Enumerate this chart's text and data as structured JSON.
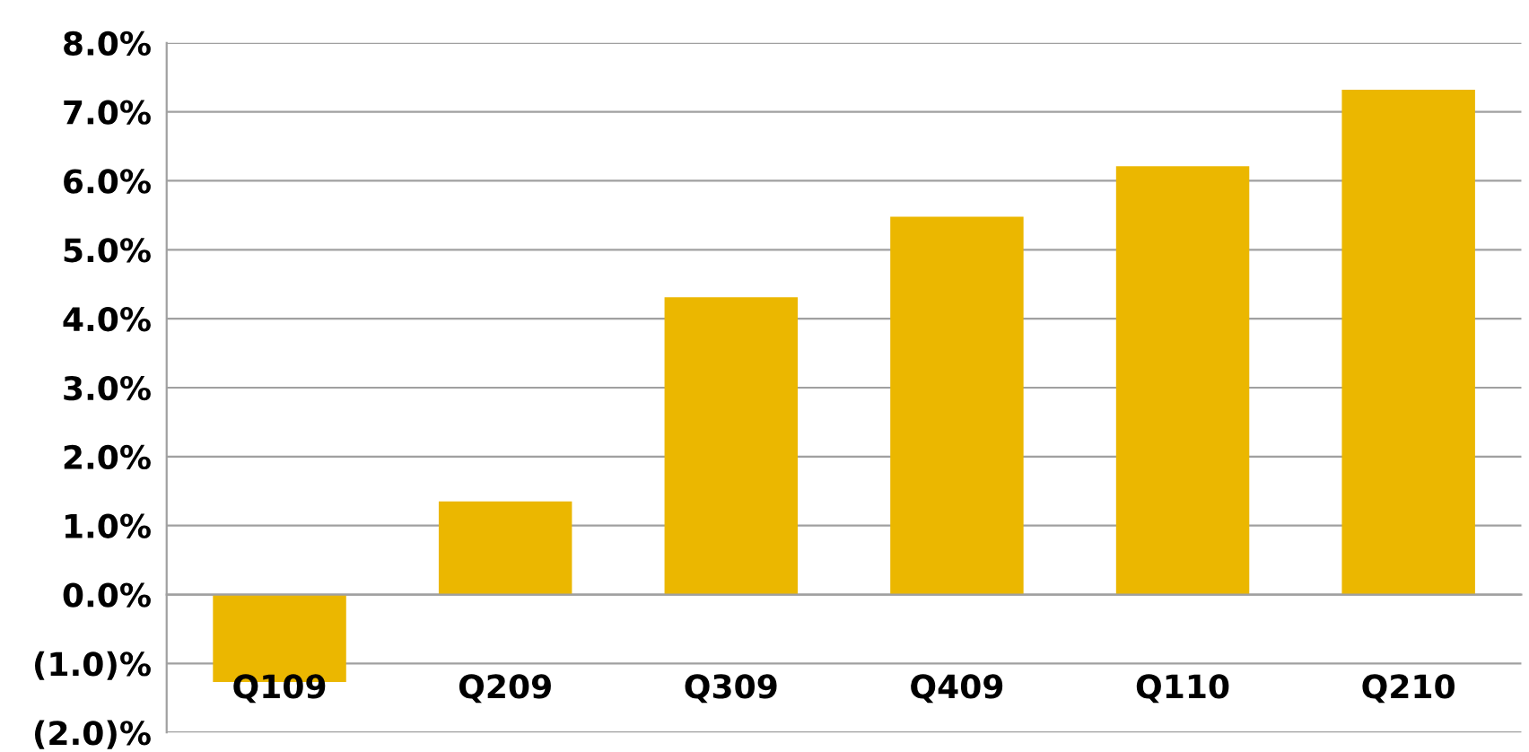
{
  "chart_data": {
    "type": "bar",
    "categories": [
      "Q109",
      "Q209",
      "Q309",
      "Q409",
      "Q110",
      "Q210"
    ],
    "values": [
      -1.27,
      1.35,
      4.31,
      5.48,
      6.21,
      7.32
    ],
    "color": "#ebb700",
    "ylim": [
      -2,
      8
    ],
    "yticks": [
      {
        "value": -2,
        "label": "(2.0)%"
      },
      {
        "value": -1,
        "label": "(1.0)%"
      },
      {
        "value": 0,
        "label": "0.0%"
      },
      {
        "value": 1,
        "label": "1.0%"
      },
      {
        "value": 2,
        "label": "2.0%"
      },
      {
        "value": 3,
        "label": "3.0%"
      },
      {
        "value": 4,
        "label": "4.0%"
      },
      {
        "value": 5,
        "label": "5.0%"
      },
      {
        "value": 6,
        "label": "6.0%"
      },
      {
        "value": 7,
        "label": "7.0%"
      },
      {
        "value": 8,
        "label": "8.0%"
      }
    ],
    "grid": "y"
  }
}
